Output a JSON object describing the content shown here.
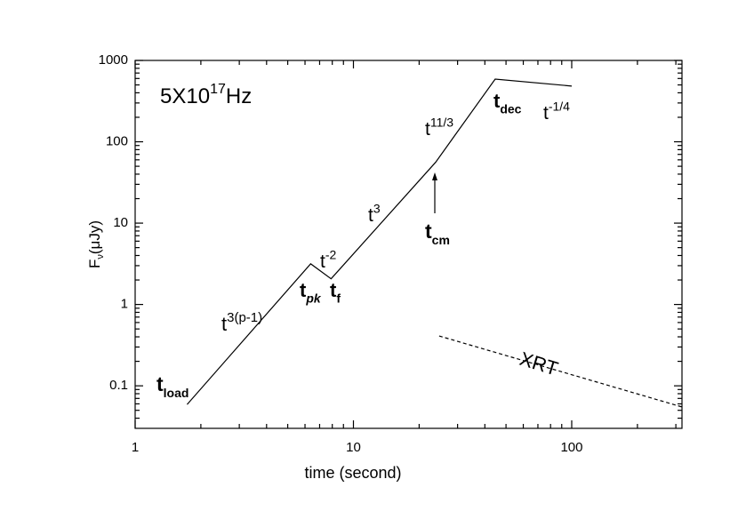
{
  "chart_data": {
    "type": "line",
    "xlabel": "time (second)",
    "ylabel": {
      "text": "F",
      "sub": "ν",
      "after": "(μJy)"
    },
    "log_x": true,
    "log_y": true,
    "xlim": [
      1,
      320
    ],
    "ylim": [
      0.03,
      1000
    ],
    "xticks": [
      1,
      10,
      100
    ],
    "yticks": [
      0.1,
      1,
      10,
      100,
      1000
    ],
    "xminorticks": [
      2,
      3,
      4,
      5,
      6,
      7,
      8,
      9,
      20,
      30,
      40,
      50,
      60,
      70,
      80,
      90,
      200,
      300
    ],
    "yminorticks": [
      0.04,
      0.05,
      0.06,
      0.07,
      0.08,
      0.09,
      0.2,
      0.3,
      0.4,
      0.5,
      0.6,
      0.7,
      0.8,
      0.9,
      2,
      3,
      4,
      5,
      6,
      7,
      8,
      9,
      20,
      30,
      40,
      50,
      60,
      70,
      80,
      90,
      200,
      300,
      400,
      500,
      600,
      700,
      800,
      900
    ],
    "series": [
      {
        "color": "#000000",
        "dash": false,
        "x": [
          1.73,
          6.37,
          7.9,
          23.8,
          44.6,
          100
        ],
        "values": [
          0.059,
          3.16,
          2.07,
          56,
          590,
          484
        ]
      },
      {
        "color": "#000000",
        "dash": true,
        "x": [
          24.7,
          320
        ],
        "values": [
          0.41,
          0.055
        ]
      }
    ],
    "annotations": [
      {
        "text": "5X10",
        "sup": "17",
        "after": "Hz"
      },
      {
        "text": "t",
        "sub": "load",
        "bold": true
      },
      {
        "text": "t",
        "sup": "3(p-1)",
        "bold": false
      },
      {
        "text": "t",
        "sub": "pk",
        "bold": true
      },
      {
        "text": "t",
        "sub": "f",
        "bold": true
      },
      {
        "text": "t",
        "sup": "-2",
        "bold": false
      },
      {
        "text": "t",
        "sup": "3",
        "bold": false
      },
      {
        "text": "t",
        "sup": "11/3",
        "bold": false
      },
      {
        "text": "t",
        "sub": "cm",
        "bold": true
      },
      {
        "text": "t",
        "sub": "dec",
        "bold": true
      },
      {
        "text": "t",
        "sup": "-1/4",
        "bold": false
      },
      {
        "text": "XRT"
      }
    ]
  }
}
